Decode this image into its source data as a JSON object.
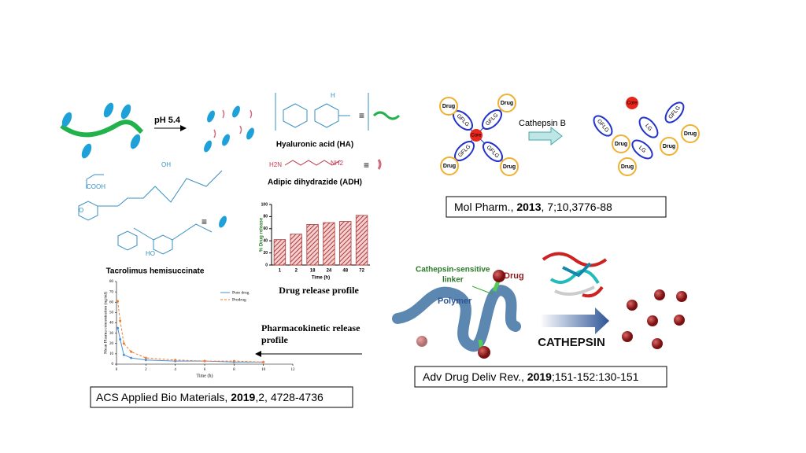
{
  "chart_data": [
    {
      "type": "bar",
      "title": "Drug release profile",
      "y_label": "% Drug release",
      "x_label": "Time (h)",
      "categories": [
        "1",
        "2",
        "18",
        "24",
        "48",
        "72"
      ],
      "values": [
        42,
        51,
        67,
        70,
        72,
        82
      ],
      "color": "#b03a3a",
      "ylim": [
        0,
        100
      ],
      "yticks": [
        0,
        20,
        40,
        60,
        80,
        100
      ]
    },
    {
      "type": "line",
      "y_label": "Mean Plasma concentration (ng/ml)",
      "x_label": "Time (h)",
      "x": [
        0.083,
        0.25,
        0.5,
        1,
        2,
        4,
        6,
        8,
        10
      ],
      "series": [
        {
          "name": "Pure drug",
          "color": "#4a90d9",
          "values": [
            35,
            24,
            9,
            6,
            4,
            3,
            3,
            2,
            2
          ]
        },
        {
          "name": "Prodrug",
          "color": "#ed7d31",
          "values": [
            61,
            42,
            20,
            12,
            6,
            4,
            3,
            3,
            2
          ]
        }
      ],
      "xlim": [
        0,
        12
      ],
      "xticks": [
        0,
        2,
        4,
        6,
        8,
        10,
        12
      ],
      "ylim": [
        0,
        80
      ],
      "yticks": [
        0,
        10,
        20,
        30,
        40,
        50,
        60,
        70,
        80
      ]
    }
  ],
  "scheme1": {
    "trigger": "pH 5.4",
    "ha": "Hyaluronic acid (HA)",
    "adh": "Adipic dihydrazide (ADH)",
    "drug": "Tacrolimus hemisuccinate",
    "pk_title": [
      "Pharmacokinetic release",
      "profile"
    ],
    "chem_labels": [
      "COOH",
      "OH",
      "HO",
      "O",
      "H",
      "NH2",
      "H2N"
    ],
    "citation": [
      "ACS Applied Bio Materials, ",
      "2019",
      ",2, 4728-4736"
    ]
  },
  "scheme2": {
    "core": "Core",
    "drug": "Drug",
    "linker": "GFLG",
    "short_linker": "LG",
    "enzyme": "Cathepsin B",
    "citation": [
      "Mol Pharm., ",
      "2013",
      ", 7;10,3776-88"
    ]
  },
  "scheme3": {
    "linker": [
      "Cathepsin-sensitive",
      "linker"
    ],
    "drug": "Drug",
    "polymer": "Polymer",
    "enzyme": "CATHEPSIN",
    "citation": [
      "Adv Drug Deliv Rev., ",
      "2019",
      ";151-152:130-151"
    ]
  }
}
